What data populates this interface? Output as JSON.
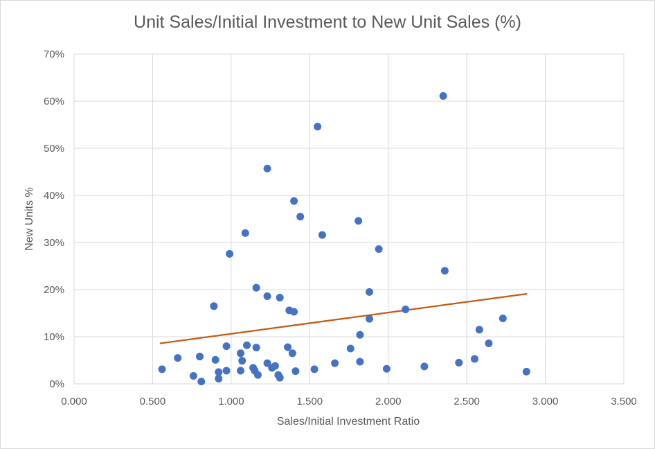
{
  "chart_data": {
    "type": "scatter",
    "title": "Unit Sales/Initial Investment to New Unit Sales (%)",
    "xlabel": "Sales/Initial Investment Ratio",
    "ylabel": "New Units %",
    "xlim": [
      0,
      3.5
    ],
    "ylim": [
      0,
      70
    ],
    "x_ticks": [
      "0.000",
      "0.500",
      "1.000",
      "1.500",
      "2.000",
      "2.500",
      "3.000",
      "3.500"
    ],
    "y_ticks": [
      "0%",
      "10%",
      "20%",
      "30%",
      "40%",
      "50%",
      "60%",
      "70%"
    ],
    "x_tick_values": [
      0,
      0.5,
      1.0,
      1.5,
      2.0,
      2.5,
      3.0,
      3.5
    ],
    "y_tick_values": [
      0,
      10,
      20,
      30,
      40,
      50,
      60,
      70
    ],
    "grid": true,
    "series": [
      {
        "color": "#4472c4",
        "points": [
          [
            0.56,
            3.1
          ],
          [
            0.66,
            5.5
          ],
          [
            0.76,
            1.7
          ],
          [
            0.8,
            5.8
          ],
          [
            0.81,
            0.5
          ],
          [
            0.89,
            16.5
          ],
          [
            0.9,
            5.1
          ],
          [
            0.92,
            2.5
          ],
          [
            0.92,
            1.1
          ],
          [
            0.97,
            8.0
          ],
          [
            0.97,
            2.8
          ],
          [
            0.99,
            27.6
          ],
          [
            1.06,
            6.5
          ],
          [
            1.06,
            2.8
          ],
          [
            1.07,
            4.9
          ],
          [
            1.09,
            32.0
          ],
          [
            1.1,
            8.2
          ],
          [
            1.14,
            3.4
          ],
          [
            1.15,
            2.8
          ],
          [
            1.16,
            20.4
          ],
          [
            1.16,
            7.7
          ],
          [
            1.17,
            1.9
          ],
          [
            1.23,
            45.7
          ],
          [
            1.23,
            18.6
          ],
          [
            1.23,
            4.4
          ],
          [
            1.26,
            3.4
          ],
          [
            1.28,
            3.8
          ],
          [
            1.3,
            1.9
          ],
          [
            1.31,
            18.3
          ],
          [
            1.31,
            1.3
          ],
          [
            1.36,
            7.8
          ],
          [
            1.37,
            15.6
          ],
          [
            1.39,
            6.5
          ],
          [
            1.4,
            38.8
          ],
          [
            1.4,
            15.3
          ],
          [
            1.41,
            2.7
          ],
          [
            1.44,
            35.5
          ],
          [
            1.53,
            3.1
          ],
          [
            1.55,
            54.6
          ],
          [
            1.58,
            31.6
          ],
          [
            1.66,
            4.4
          ],
          [
            1.76,
            7.5
          ],
          [
            1.81,
            34.6
          ],
          [
            1.82,
            10.4
          ],
          [
            1.82,
            4.7
          ],
          [
            1.88,
            19.5
          ],
          [
            1.88,
            13.8
          ],
          [
            1.94,
            28.6
          ],
          [
            1.99,
            3.2
          ],
          [
            2.11,
            15.8
          ],
          [
            2.23,
            3.7
          ],
          [
            2.35,
            61.1
          ],
          [
            2.36,
            24.0
          ],
          [
            2.45,
            4.5
          ],
          [
            2.55,
            5.3
          ],
          [
            2.58,
            11.5
          ],
          [
            2.64,
            8.6
          ],
          [
            2.73,
            13.9
          ],
          [
            2.88,
            2.6
          ]
        ]
      }
    ],
    "trendline": {
      "type": "linear",
      "color": "#c55a11",
      "x": [
        0.55,
        2.88
      ],
      "y": [
        8.6,
        19.1
      ]
    }
  }
}
